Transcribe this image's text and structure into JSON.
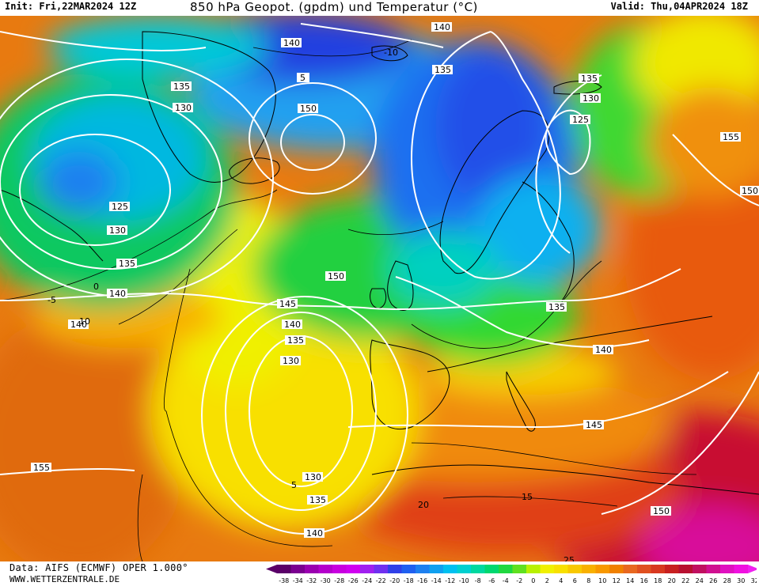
{
  "header": {
    "init": "Init: Fri,22MAR2024 12Z",
    "title": "850 hPa Geopot. (gpdm) und Temperatur (°C)",
    "valid": "Valid: Thu,04APR2024 18Z"
  },
  "footer": {
    "data_source": "Data: AIFS (ECMWF) OPER 1.000°",
    "website": "WWW.WETTERZENTRALE.DE"
  },
  "scale": {
    "ticks": [
      "-38",
      "-34",
      "-32",
      "-30",
      "-28",
      "-26",
      "-24",
      "-22",
      "-20",
      "-18",
      "-16",
      "-14",
      "-12",
      "-10",
      "-8",
      "-6",
      "-4",
      "-2",
      "0",
      "2",
      "4",
      "6",
      "8",
      "10",
      "12",
      "14",
      "16",
      "18",
      "20",
      "22",
      "24",
      "26",
      "28",
      "30",
      "32"
    ],
    "colors": [
      "#5a0068",
      "#7a0090",
      "#9a00b0",
      "#b400cc",
      "#c800e0",
      "#d000f0",
      "#a020f0",
      "#7030f0",
      "#3040e8",
      "#2060f0",
      "#1e80f0",
      "#10a0f0",
      "#00c0f0",
      "#00d0d0",
      "#00d8a0",
      "#00d870",
      "#20d840",
      "#60e020",
      "#b8f000",
      "#f0f000",
      "#f8e000",
      "#f8c800",
      "#f8b000",
      "#f89800",
      "#f08000",
      "#e86820",
      "#e05020",
      "#d83820",
      "#c82020",
      "#b81030",
      "#c01060",
      "#d01090",
      "#e010c0",
      "#f010e0"
    ],
    "arrows": {
      "left": "#5a0068",
      "right": "#f020f0"
    }
  },
  "contours": {
    "geopotential_labels": [
      "140",
      "140",
      "135",
      "135",
      "130",
      "5",
      "150",
      "145",
      "135",
      "130",
      "125",
      "155",
      "150",
      "125",
      "130",
      "135",
      "140",
      "150",
      "135",
      "140",
      "145",
      "140",
      "135",
      "130",
      "130",
      "135",
      "140",
      "145",
      "155",
      "150",
      "140"
    ],
    "temperature_labels": [
      "-10",
      "-5",
      "0",
      "5",
      "10",
      "15",
      "20",
      "25"
    ]
  }
}
